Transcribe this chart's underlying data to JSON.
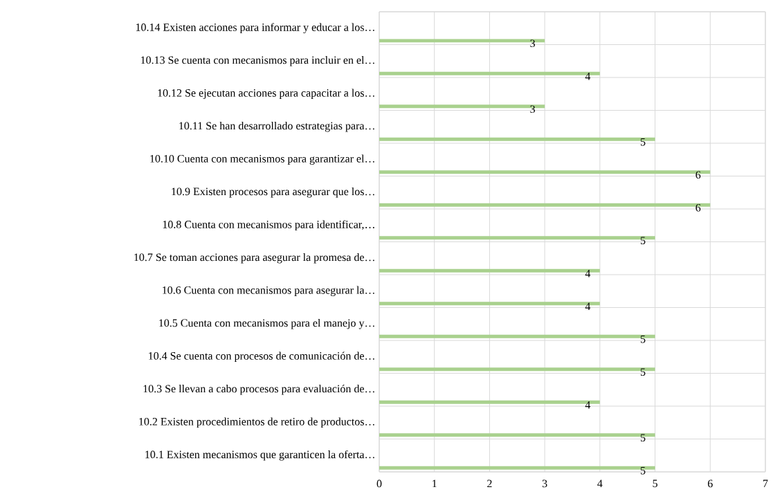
{
  "chart_data": {
    "type": "bar",
    "orientation": "horizontal",
    "categories": [
      "10.14 Existen acciones para informar y educar a los…",
      "10.13 Se cuenta con mecanismos para incluir en el…",
      "10.12 Se ejecutan acciones para capacitar a los…",
      "10.11 Se han desarrollado estrategias para…",
      "10.10 Cuenta con mecanismos para garantizar el…",
      "10.9 Existen procesos para asegurar que los…",
      "10.8 Cuenta con mecanismos para identificar,…",
      "10.7 Se toman acciones para asegurar la promesa de…",
      "10.6 Cuenta con mecanismos para asegurar la…",
      "10.5 Cuenta con mecanismos para el manejo y…",
      "10.4 Se cuenta con procesos de comunicación de…",
      "10.3 Se llevan a cabo procesos para evaluación de…",
      "10.2 Existen procedimientos de retiro de productos…",
      "10.1 Existen mecanismos que garanticen la oferta…"
    ],
    "values": [
      3,
      4,
      3,
      5,
      6,
      6,
      5,
      4,
      4,
      5,
      5,
      4,
      5,
      5
    ],
    "color": "#a9d18e",
    "data_labels": true,
    "grid": true,
    "xlim": [
      0,
      7
    ],
    "xticks": [
      0,
      1,
      2,
      3,
      4,
      5,
      6,
      7
    ]
  }
}
